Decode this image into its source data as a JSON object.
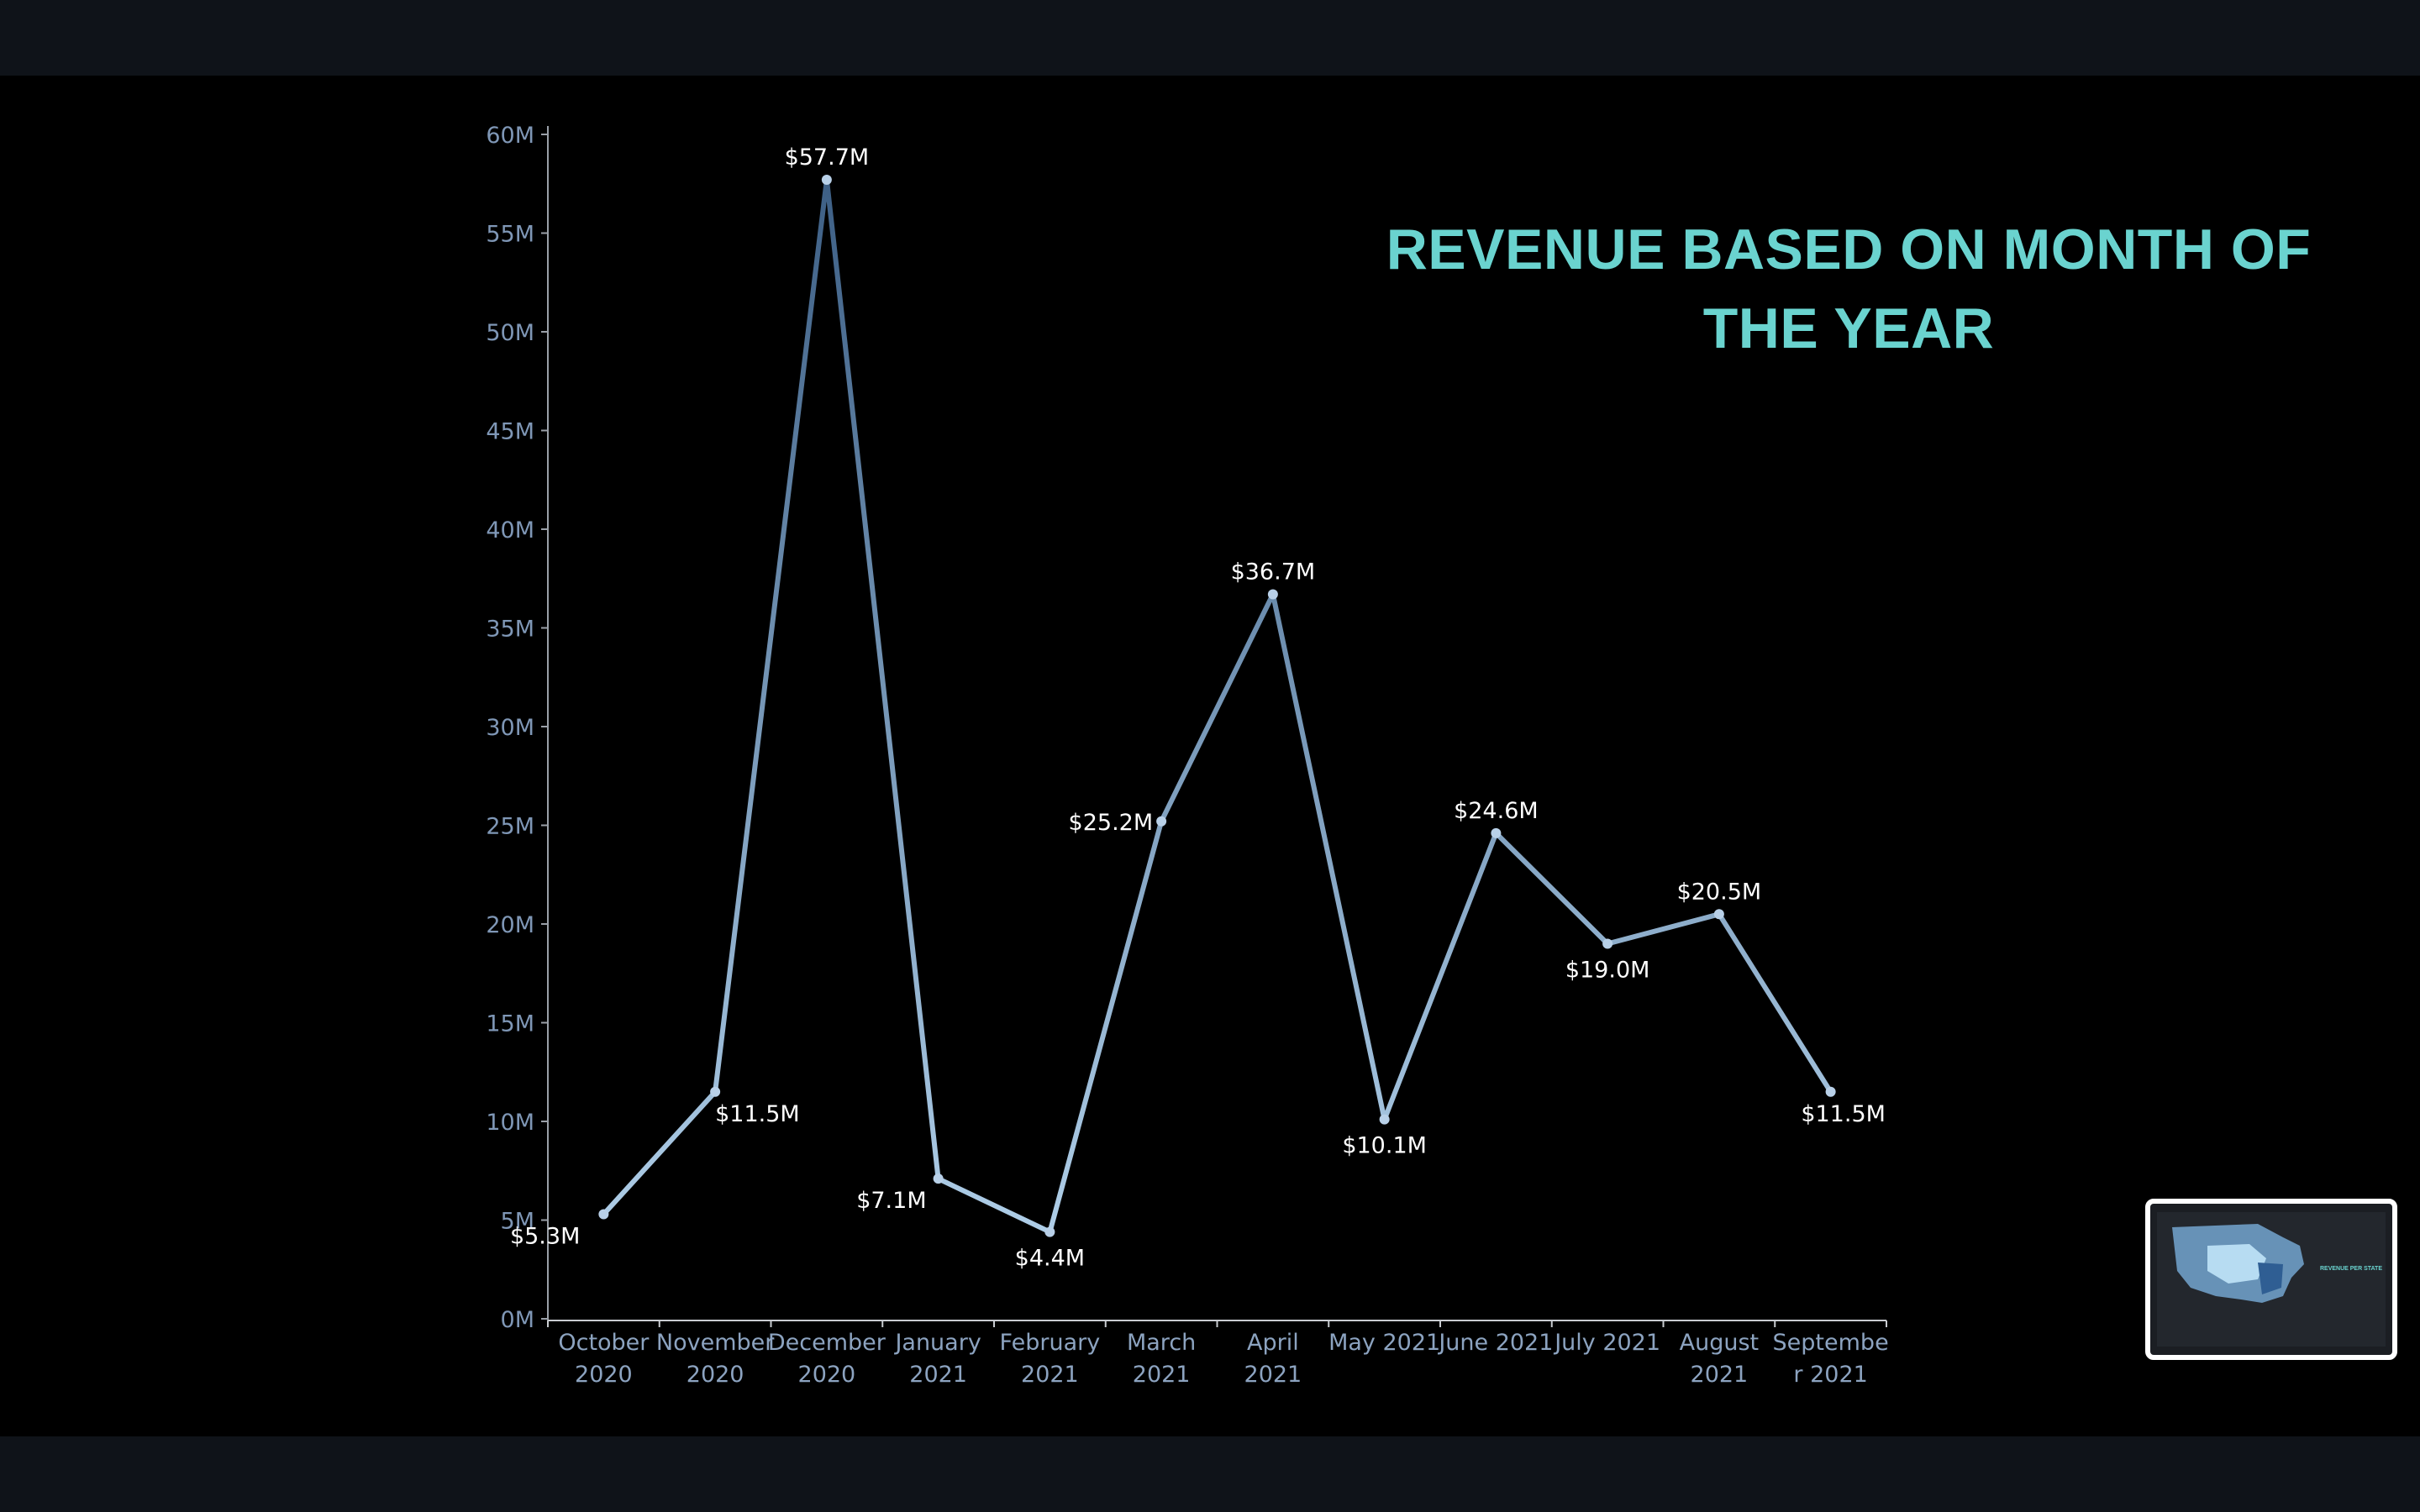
{
  "chart_data": {
    "type": "line",
    "title": "REVENUE BASED ON MONTH OF THE YEAR",
    "xlabel": "",
    "ylabel": "",
    "ylim": [
      0,
      60
    ],
    "y_ticks": [
      "0M",
      "5M",
      "10M",
      "15M",
      "20M",
      "25M",
      "30M",
      "35M",
      "40M",
      "45M",
      "50M",
      "55M",
      "60M"
    ],
    "categories": [
      [
        "October",
        "2020"
      ],
      [
        "November",
        "2020"
      ],
      [
        "December",
        "2020"
      ],
      [
        "January",
        "2021"
      ],
      [
        "February",
        "2021"
      ],
      [
        "March",
        "2021"
      ],
      [
        "April",
        "2021"
      ],
      [
        "May 2021"
      ],
      [
        "June 2021"
      ],
      [
        "July 2021"
      ],
      [
        "August",
        "2021"
      ],
      [
        "Septembe",
        "r 2021"
      ]
    ],
    "values": [
      5.3,
      11.5,
      57.7,
      7.1,
      4.4,
      25.2,
      36.7,
      10.1,
      24.6,
      19.0,
      20.5,
      11.5
    ],
    "data_labels": [
      "$5.3M",
      "$11.5M",
      "$57.7M",
      "$7.1M",
      "$4.4M",
      "$25.2M",
      "$36.7M",
      "$10.1M",
      "$24.6M",
      "$19.0M",
      "$20.5M",
      "$11.5M"
    ],
    "grid": false,
    "line_color_gradient": [
      "#b8d7f0",
      "#3d5f85"
    ]
  },
  "thumbnail": {
    "label": "REVENUE PER STATE"
  },
  "colors": {
    "background": "#000000",
    "frame": "#0f1319",
    "title": "#6ad3cf",
    "axis_text": "#7f97b6",
    "data_label": "#ffffff"
  }
}
